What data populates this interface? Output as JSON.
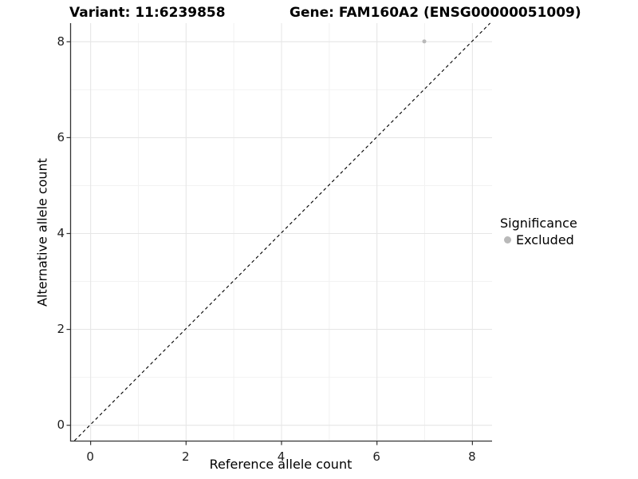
{
  "chart_data": {
    "type": "scatter",
    "title_left": "Variant: 11:6239858",
    "title_right": "Gene: FAM160A2 (ENSG00000051009)",
    "xlabel": "Reference allele count",
    "ylabel": "Alternative allele count",
    "xlim": [
      -0.42,
      8.42
    ],
    "ylim": [
      -0.33,
      8.38
    ],
    "xticks": [
      0,
      2,
      4,
      6,
      8
    ],
    "yticks": [
      0,
      2,
      4,
      6,
      8
    ],
    "xminor": [
      1,
      3,
      5,
      7
    ],
    "yminor": [
      1,
      3,
      5,
      7
    ],
    "grid": true,
    "points": [
      {
        "x": 7,
        "y": 8,
        "series": "Excluded"
      }
    ],
    "identity_line": {
      "slope": 1,
      "intercept": 0,
      "linetype": "dashed",
      "color": "#000000"
    },
    "legend": {
      "title": "Significance",
      "position": "right",
      "items": [
        {
          "label": "Excluded",
          "color": "#b9b9b9"
        }
      ]
    },
    "colors": {
      "point": "#b9b9b9",
      "grid_major": "#e6e6e6",
      "grid_minor": "#f2f2f2",
      "axis": "#333333",
      "tick": "#333333",
      "dashed_line": "#000000",
      "background": "#ffffff"
    }
  }
}
